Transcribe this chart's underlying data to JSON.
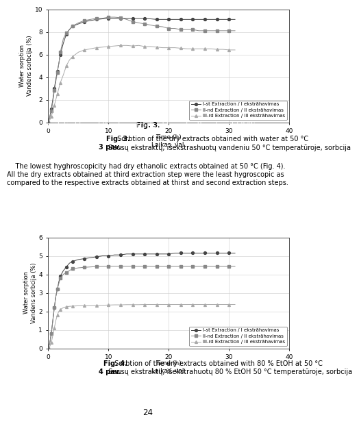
{
  "fig3": {
    "ylabel": "Water sorption\nVandens sorbcija (%)",
    "xlabel": "Time (h)\nLaikas, val.",
    "xlim": [
      0,
      40
    ],
    "ylim": [
      0,
      10
    ],
    "yticks": [
      0,
      2,
      4,
      6,
      8,
      10
    ],
    "xticks": [
      0,
      10,
      20,
      30,
      40
    ],
    "series1_label": "I-st Extraction / I ekstrāhavimas",
    "series2_label": "II-nd Extraction / II ekstrāhavimas",
    "series3_label": "III-rd Extraction / III ekstrāhavimas",
    "s1_color": "#444444",
    "s2_color": "#888888",
    "s3_color": "#aaaaaa",
    "s1_x": [
      0,
      0.25,
      0.5,
      0.75,
      1.0,
      1.25,
      1.5,
      1.75,
      2.0,
      2.5,
      3.0,
      3.5,
      4.0,
      5.0,
      6.0,
      7.0,
      8.0,
      9.0,
      10.0,
      11.0,
      12.0,
      13.0,
      14.0,
      15.0,
      16.0,
      17.0,
      18.0,
      19.0,
      20.0,
      21.0,
      22.0,
      23.0,
      24.0,
      25.0,
      26.0,
      27.0,
      28.0,
      29.0,
      30.0,
      31.0
    ],
    "s1_y": [
      0,
      0.5,
      1.2,
      2.0,
      3.0,
      3.8,
      4.5,
      5.2,
      6.0,
      7.0,
      7.8,
      8.2,
      8.5,
      8.7,
      8.9,
      9.0,
      9.1,
      9.15,
      9.2,
      9.2,
      9.2,
      9.2,
      9.2,
      9.2,
      9.2,
      9.15,
      9.1,
      9.1,
      9.1,
      9.1,
      9.1,
      9.1,
      9.1,
      9.1,
      9.1,
      9.1,
      9.1,
      9.1,
      9.1,
      9.1
    ],
    "s2_x": [
      0,
      0.25,
      0.5,
      0.75,
      1.0,
      1.25,
      1.5,
      1.75,
      2.0,
      2.5,
      3.0,
      3.5,
      4.0,
      5.0,
      6.0,
      7.0,
      8.0,
      9.0,
      10.0,
      11.0,
      12.0,
      13.0,
      14.0,
      15.0,
      16.0,
      17.0,
      18.0,
      19.0,
      20.0,
      21.0,
      22.0,
      23.0,
      24.0,
      25.0,
      26.0,
      27.0,
      28.0,
      29.0,
      30.0,
      31.0
    ],
    "s2_y": [
      0,
      0.4,
      1.0,
      1.8,
      2.8,
      3.6,
      4.4,
      5.2,
      6.2,
      7.4,
      7.9,
      8.2,
      8.5,
      8.8,
      9.0,
      9.1,
      9.2,
      9.2,
      9.3,
      9.3,
      9.25,
      9.1,
      8.9,
      8.8,
      8.7,
      8.6,
      8.5,
      8.45,
      8.3,
      8.3,
      8.2,
      8.2,
      8.2,
      8.1,
      8.1,
      8.1,
      8.1,
      8.1,
      8.1,
      8.1
    ],
    "s3_x": [
      0,
      0.25,
      0.5,
      0.75,
      1.0,
      1.25,
      1.5,
      1.75,
      2.0,
      2.5,
      3.0,
      3.5,
      4.0,
      5.0,
      6.0,
      7.0,
      8.0,
      9.0,
      10.0,
      11.0,
      12.0,
      13.0,
      14.0,
      15.0,
      16.0,
      17.0,
      18.0,
      19.0,
      20.0,
      21.0,
      22.0,
      23.0,
      24.0,
      25.0,
      26.0,
      27.0,
      28.0,
      29.0,
      30.0,
      31.0
    ],
    "s3_y": [
      0,
      0.2,
      0.5,
      1.0,
      1.5,
      2.0,
      2.5,
      3.0,
      3.5,
      4.2,
      5.0,
      5.5,
      5.8,
      6.2,
      6.4,
      6.5,
      6.6,
      6.65,
      6.7,
      6.75,
      6.8,
      6.8,
      6.75,
      6.8,
      6.7,
      6.7,
      6.65,
      6.6,
      6.6,
      6.6,
      6.55,
      6.5,
      6.5,
      6.5,
      6.5,
      6.5,
      6.45,
      6.45,
      6.4,
      6.4
    ]
  },
  "fig4": {
    "ylabel": "Water sorption\nVandens sorbcija (%)",
    "xlabel": "Time (h)\nLaikas, val.",
    "xlim": [
      0,
      40
    ],
    "ylim": [
      0,
      6
    ],
    "yticks": [
      0,
      1,
      2,
      3,
      4,
      5,
      6
    ],
    "xticks": [
      0,
      10,
      20,
      30,
      40
    ],
    "series1_label": "I-st Extraction / I ekstrāhavimas",
    "series2_label": "II-nd Extraction / II ekstrāhavimas",
    "series3_label": "III-rd Extraction / III ekstrāhavimas",
    "s1_color": "#444444",
    "s2_color": "#888888",
    "s3_color": "#aaaaaa",
    "s1_x": [
      0,
      0.25,
      0.5,
      0.75,
      1.0,
      1.25,
      1.5,
      1.75,
      2.0,
      2.5,
      3.0,
      3.5,
      4.0,
      5.0,
      6.0,
      7.0,
      8.0,
      9.0,
      10.0,
      11.0,
      12.0,
      13.0,
      14.0,
      15.0,
      16.0,
      17.0,
      18.0,
      19.0,
      20.0,
      21.0,
      22.0,
      23.0,
      24.0,
      25.0,
      26.0,
      27.0,
      28.0,
      29.0,
      30.0,
      31.0
    ],
    "s1_y": [
      0,
      0.3,
      0.8,
      1.5,
      2.2,
      2.8,
      3.2,
      3.6,
      3.9,
      4.2,
      4.4,
      4.6,
      4.7,
      4.8,
      4.85,
      4.9,
      4.95,
      5.0,
      5.0,
      5.05,
      5.05,
      5.1,
      5.1,
      5.1,
      5.1,
      5.1,
      5.1,
      5.1,
      5.1,
      5.15,
      5.15,
      5.15,
      5.15,
      5.15,
      5.15,
      5.15,
      5.15,
      5.15,
      5.15,
      5.15
    ],
    "s2_x": [
      0,
      0.25,
      0.5,
      0.75,
      1.0,
      1.25,
      1.5,
      1.75,
      2.0,
      2.5,
      3.0,
      3.5,
      4.0,
      5.0,
      6.0,
      7.0,
      8.0,
      9.0,
      10.0,
      11.0,
      12.0,
      13.0,
      14.0,
      15.0,
      16.0,
      17.0,
      18.0,
      19.0,
      20.0,
      21.0,
      22.0,
      23.0,
      24.0,
      25.0,
      26.0,
      27.0,
      28.0,
      29.0,
      30.0,
      31.0
    ],
    "s2_y": [
      0,
      0.3,
      0.8,
      1.5,
      2.2,
      2.8,
      3.2,
      3.5,
      3.8,
      4.0,
      4.1,
      4.2,
      4.3,
      4.35,
      4.38,
      4.4,
      4.42,
      4.43,
      4.44,
      4.44,
      4.44,
      4.44,
      4.44,
      4.43,
      4.43,
      4.43,
      4.43,
      4.43,
      4.43,
      4.43,
      4.43,
      4.43,
      4.43,
      4.43,
      4.43,
      4.43,
      4.43,
      4.43,
      4.43,
      4.43
    ],
    "s3_x": [
      0,
      0.25,
      0.5,
      0.75,
      1.0,
      1.25,
      1.5,
      1.75,
      2.0,
      2.5,
      3.0,
      3.5,
      4.0,
      5.0,
      6.0,
      7.0,
      8.0,
      9.0,
      10.0,
      11.0,
      12.0,
      13.0,
      14.0,
      15.0,
      16.0,
      17.0,
      18.0,
      19.0,
      20.0,
      21.0,
      22.0,
      23.0,
      24.0,
      25.0,
      26.0,
      27.0,
      28.0,
      29.0,
      30.0,
      31.0
    ],
    "s3_y": [
      0,
      0.1,
      0.3,
      0.7,
      1.1,
      1.5,
      1.8,
      2.0,
      2.1,
      2.2,
      2.25,
      2.27,
      2.28,
      2.3,
      2.3,
      2.3,
      2.32,
      2.33,
      2.34,
      2.35,
      2.35,
      2.36,
      2.36,
      2.36,
      2.37,
      2.37,
      2.37,
      2.37,
      2.37,
      2.37,
      2.37,
      2.37,
      2.37,
      2.37,
      2.37,
      2.37,
      2.37,
      2.37,
      2.37,
      2.37
    ]
  },
  "cap3_bold": "Fig. 3.",
  "cap3_normal": " Sorbtion of the dry extracts obtained with water at 50 °C",
  "cap3b_bold": "3 pav.",
  "cap3b_normal": " Sausų ekstraktų, išekstrashuotų vandeniu 50 °C temperatūroje, sorbcija",
  "cap4_bold": "Fig. 4.",
  "cap4_normal": " Sorbtion of the dry extracts obtained with 80 % EtOH at 50 °C",
  "cap4b_bold": "4 pav.",
  "cap4b_normal": " Sausų ekstraktų, išekstrahuotų 80 % EtOH 50 °C temperatūroje, sorbcija",
  "text_line1": "    The lowest hyghroscopicity had dry ethanolic extracts obtained at 50 °C (Fig. 4).",
  "text_line2": "All the dry extracts obtained at third extraction step were the least hygroscopic as",
  "text_line3": "compared to the respective extracts obtained at thirst and second extraction steps.",
  "page_number": "24",
  "bg_color": "#ffffff",
  "grid_color": "#cccccc",
  "spine_color": "#333333"
}
